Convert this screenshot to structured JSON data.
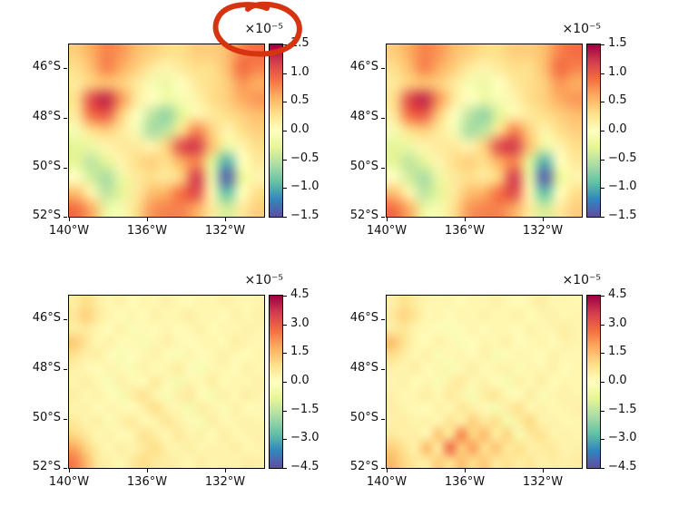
{
  "figure": {
    "background": "#ffffff",
    "text_color": "#111111"
  },
  "annotation": {
    "type": "hand-drawn-circle",
    "color": "#d63310",
    "around": "offset label of top-left colorbar"
  },
  "colormap": {
    "name": "Spectral_r",
    "stops": [
      {
        "t": 0.0,
        "color": "#5e4fa2"
      },
      {
        "t": 0.1,
        "color": "#3288bd"
      },
      {
        "t": 0.2,
        "color": "#66c2a5"
      },
      {
        "t": 0.3,
        "color": "#abdda4"
      },
      {
        "t": 0.4,
        "color": "#e6f598"
      },
      {
        "t": 0.5,
        "color": "#ffffbf"
      },
      {
        "t": 0.6,
        "color": "#fee08b"
      },
      {
        "t": 0.7,
        "color": "#fdae61"
      },
      {
        "t": 0.8,
        "color": "#f46d43"
      },
      {
        "t": 0.9,
        "color": "#d53e4f"
      },
      {
        "t": 1.0,
        "color": "#9e0142"
      }
    ]
  },
  "chart_data": [
    {
      "type": "heatmap",
      "position": "top-left",
      "offset_label": "×10⁻⁵",
      "x_tick_labels": [
        "140°W",
        "136°W",
        "132°W"
      ],
      "y_tick_labels": [
        "46°S",
        "48°S",
        "50°S",
        "52°S"
      ],
      "x_range_deg_west": [
        140.2,
        130.2
      ],
      "y_range_deg_south": [
        45.1,
        52.0
      ],
      "colorbar": {
        "vmin": -1.5,
        "vmax": 1.5,
        "scale": "1e-5",
        "tick_labels": [
          "1.5",
          "1.0",
          "0.5",
          "0.0",
          "−0.5",
          "−1.0",
          "−1.5"
        ]
      },
      "values": [
        [
          0.4,
          0.6,
          0.8,
          0.7,
          0.5,
          0.4,
          0.3,
          0.3,
          0.4,
          0.4,
          0.5,
          0.8,
          0.9
        ],
        [
          0.3,
          0.5,
          0.8,
          0.6,
          0.4,
          0.2,
          0.1,
          0.2,
          0.3,
          0.3,
          0.5,
          0.9,
          0.8
        ],
        [
          0.2,
          0.4,
          0.5,
          0.4,
          0.2,
          -0.1,
          -0.2,
          0.0,
          0.2,
          0.3,
          0.4,
          0.7,
          0.6
        ],
        [
          0.3,
          1.1,
          1.3,
          0.7,
          0.2,
          0.0,
          -0.2,
          -0.1,
          0.1,
          0.3,
          0.4,
          0.6,
          0.7
        ],
        [
          0.2,
          0.9,
          1.0,
          0.4,
          0.0,
          -0.5,
          -0.7,
          -0.3,
          0.1,
          0.2,
          0.3,
          0.4,
          0.5
        ],
        [
          -0.1,
          0.3,
          0.4,
          0.2,
          -0.1,
          -0.6,
          -0.5,
          0.3,
          0.8,
          0.4,
          0.1,
          0.3,
          0.4
        ],
        [
          -0.3,
          -0.2,
          0.1,
          0.2,
          0.2,
          0.1,
          0.4,
          1.1,
          1.2,
          0.5,
          -0.2,
          0.1,
          0.3
        ],
        [
          -0.3,
          -0.5,
          -0.3,
          0.1,
          0.3,
          0.4,
          0.3,
          0.6,
          0.8,
          -0.3,
          -1.0,
          0.0,
          0.2
        ],
        [
          0.0,
          -0.4,
          -0.6,
          -0.2,
          0.2,
          0.3,
          0.2,
          0.4,
          1.2,
          -0.2,
          -1.4,
          -0.3,
          0.1
        ],
        [
          0.5,
          0.1,
          -0.5,
          -0.3,
          0.2,
          0.5,
          0.6,
          0.9,
          1.1,
          0.1,
          -0.9,
          0.0,
          0.3
        ],
        [
          0.9,
          0.6,
          -0.2,
          -0.1,
          0.3,
          0.7,
          0.8,
          0.8,
          0.6,
          0.2,
          -0.4,
          0.2,
          0.4
        ]
      ]
    },
    {
      "type": "heatmap",
      "position": "top-right",
      "offset_label": "×10⁻⁵",
      "x_tick_labels": [
        "140°W",
        "136°W",
        "132°W"
      ],
      "y_tick_labels": [
        "46°S",
        "48°S",
        "50°S",
        "52°S"
      ],
      "x_range_deg_west": [
        140.2,
        130.2
      ],
      "y_range_deg_south": [
        45.1,
        52.0
      ],
      "colorbar": {
        "vmin": -1.5,
        "vmax": 1.5,
        "scale": "1e-5",
        "tick_labels": [
          "1.5",
          "1.0",
          "0.5",
          "0.0",
          "−0.5",
          "−1.0",
          "−1.5"
        ]
      },
      "values": [
        [
          0.4,
          0.6,
          0.8,
          0.7,
          0.5,
          0.4,
          0.3,
          0.3,
          0.4,
          0.4,
          0.5,
          0.8,
          0.9
        ],
        [
          0.3,
          0.5,
          0.8,
          0.6,
          0.4,
          0.2,
          0.1,
          0.2,
          0.3,
          0.3,
          0.5,
          0.9,
          0.8
        ],
        [
          0.2,
          0.4,
          0.5,
          0.4,
          0.2,
          -0.1,
          -0.2,
          0.0,
          0.2,
          0.3,
          0.4,
          0.7,
          0.6
        ],
        [
          0.3,
          1.1,
          1.3,
          0.7,
          0.2,
          0.0,
          -0.2,
          -0.1,
          0.1,
          0.3,
          0.4,
          0.6,
          0.7
        ],
        [
          0.2,
          0.9,
          1.0,
          0.4,
          0.0,
          -0.5,
          -0.7,
          -0.3,
          0.1,
          0.2,
          0.3,
          0.4,
          0.5
        ],
        [
          -0.1,
          0.3,
          0.4,
          0.2,
          -0.1,
          -0.6,
          -0.5,
          0.3,
          0.8,
          0.4,
          0.1,
          0.3,
          0.4
        ],
        [
          -0.3,
          -0.2,
          0.1,
          0.2,
          0.2,
          0.1,
          0.4,
          1.1,
          1.2,
          0.5,
          -0.2,
          0.1,
          0.3
        ],
        [
          -0.3,
          -0.5,
          -0.3,
          0.1,
          0.3,
          0.4,
          0.3,
          0.6,
          0.8,
          -0.3,
          -1.0,
          0.0,
          0.2
        ],
        [
          0.0,
          -0.4,
          -0.6,
          -0.2,
          0.2,
          0.3,
          0.2,
          0.4,
          1.2,
          -0.2,
          -1.4,
          -0.3,
          0.1
        ],
        [
          0.5,
          0.1,
          -0.5,
          -0.3,
          0.2,
          0.5,
          0.6,
          0.9,
          1.1,
          0.1,
          -0.9,
          0.0,
          0.3
        ],
        [
          0.9,
          0.6,
          -0.2,
          -0.1,
          0.3,
          0.7,
          0.8,
          0.8,
          0.6,
          0.2,
          -0.4,
          0.2,
          0.4
        ]
      ]
    },
    {
      "type": "heatmap",
      "position": "bottom-left",
      "offset_label": "×10⁻⁵",
      "x_tick_labels": [
        "140°W",
        "136°W",
        "132°W"
      ],
      "y_tick_labels": [
        "46°S",
        "48°S",
        "50°S",
        "52°S"
      ],
      "x_range_deg_west": [
        140.2,
        130.2
      ],
      "y_range_deg_south": [
        45.1,
        52.0
      ],
      "colorbar": {
        "vmin": -4.5,
        "vmax": 4.5,
        "scale": "1e-5",
        "tick_labels": [
          "4.5",
          "3.0",
          "1.5",
          "0.0",
          "−1.5",
          "−3.0",
          "−4.5"
        ]
      },
      "values": [
        [
          0.5,
          0.9,
          0.5,
          0.2,
          0.4,
          0.1,
          0.3,
          0.2,
          0.4,
          0.2,
          0.1,
          0.3,
          0.2,
          0.4,
          0.3,
          0.2,
          0.3
        ],
        [
          0.7,
          1.2,
          0.6,
          0.3,
          0.1,
          0.3,
          0.1,
          0.4,
          0.2,
          0.3,
          0.5,
          0.2,
          0.3,
          0.1,
          0.4,
          0.2,
          0.4
        ],
        [
          0.5,
          0.6,
          0.3,
          0.1,
          0.4,
          -0.2,
          0.2,
          0.1,
          0.3,
          0.1,
          0.2,
          0.4,
          0.1,
          0.3,
          0.2,
          0.4,
          0.3
        ],
        [
          1.3,
          0.7,
          0.2,
          0.4,
          0.1,
          0.2,
          -0.3,
          0.2,
          0.4,
          0.2,
          0.1,
          0.2,
          0.3,
          0.1,
          0.5,
          0.3,
          0.2
        ],
        [
          0.8,
          0.4,
          0.5,
          0.1,
          -0.3,
          0.1,
          0.2,
          0.4,
          0.1,
          -0.2,
          0.3,
          0.1,
          0.2,
          0.4,
          0.2,
          0.1,
          0.3
        ],
        [
          0.4,
          0.2,
          0.1,
          0.3,
          0.2,
          -0.2,
          0.4,
          0.1,
          0.3,
          0.5,
          0.1,
          -0.3,
          0.2,
          0.3,
          0.1,
          0.4,
          0.2
        ],
        [
          0.3,
          0.5,
          0.2,
          -0.2,
          0.4,
          0.2,
          0.1,
          0.6,
          0.2,
          -0.4,
          0.3,
          0.2,
          0.5,
          0.1,
          0.3,
          0.2,
          0.4
        ],
        [
          0.5,
          0.2,
          0.4,
          0.1,
          -0.3,
          0.5,
          0.8,
          0.3,
          -0.2,
          0.4,
          0.6,
          0.1,
          -0.3,
          0.4,
          0.2,
          0.5,
          0.3
        ],
        [
          0.3,
          0.4,
          0.1,
          0.3,
          0.2,
          0.1,
          0.4,
          0.9,
          0.4,
          0.2,
          -0.4,
          0.5,
          0.3,
          -0.2,
          0.4,
          0.1,
          0.2
        ],
        [
          0.6,
          0.3,
          0.5,
          -0.2,
          0.4,
          0.6,
          0.2,
          0.3,
          0.7,
          0.4,
          0.2,
          -0.3,
          0.5,
          0.2,
          0.3,
          0.4,
          0.3
        ],
        [
          1.0,
          0.6,
          0.2,
          0.4,
          0.1,
          0.3,
          0.8,
          0.5,
          0.2,
          0.6,
          0.3,
          0.4,
          0.1,
          0.5,
          0.2,
          0.3,
          0.4
        ],
        [
          1.9,
          1.1,
          0.5,
          0.2,
          0.5,
          0.3,
          0.6,
          0.9,
          0.4,
          0.3,
          0.5,
          0.2,
          0.4,
          0.3,
          0.5,
          0.2,
          0.3
        ],
        [
          2.5,
          1.6,
          0.6,
          0.4,
          0.2,
          0.6,
          0.9,
          0.6,
          0.5,
          0.4,
          0.2,
          0.5,
          0.3,
          0.4,
          0.3,
          0.5,
          0.4
        ]
      ]
    },
    {
      "type": "heatmap",
      "position": "bottom-right",
      "offset_label": "×10⁻⁵",
      "x_tick_labels": [
        "140°W",
        "136°W",
        "132°W"
      ],
      "y_tick_labels": [
        "46°S",
        "48°S",
        "50°S",
        "52°S"
      ],
      "x_range_deg_west": [
        140.2,
        130.2
      ],
      "y_range_deg_south": [
        45.1,
        52.0
      ],
      "colorbar": {
        "vmin": -4.5,
        "vmax": 4.5,
        "scale": "1e-5",
        "tick_labels": [
          "4.5",
          "3.0",
          "1.5",
          "0.0",
          "−1.5",
          "−3.0",
          "−4.5"
        ]
      },
      "values": [
        [
          0.4,
          0.8,
          0.5,
          0.3,
          0.2,
          0.3,
          0.1,
          0.3,
          0.2,
          0.4,
          0.2,
          0.1,
          0.3,
          0.5,
          0.2,
          0.3,
          0.2
        ],
        [
          0.6,
          1.1,
          0.7,
          0.2,
          0.3,
          0.1,
          0.3,
          0.2,
          0.4,
          0.2,
          0.3,
          0.4,
          0.1,
          0.3,
          0.4,
          0.2,
          0.3
        ],
        [
          0.5,
          0.7,
          0.3,
          0.2,
          0.1,
          -0.2,
          0.1,
          0.3,
          0.1,
          0.3,
          0.2,
          0.1,
          0.4,
          0.2,
          0.3,
          0.5,
          0.3
        ],
        [
          1.5,
          0.8,
          0.3,
          0.1,
          0.4,
          0.2,
          -0.2,
          0.1,
          0.3,
          0.2,
          0.4,
          0.1,
          0.2,
          0.3,
          0.1,
          0.4,
          0.3
        ],
        [
          0.9,
          0.5,
          0.2,
          0.4,
          -0.2,
          0.2,
          0.3,
          0.1,
          0.4,
          -0.3,
          0.1,
          0.3,
          0.2,
          0.1,
          0.4,
          0.2,
          0.2
        ],
        [
          0.4,
          0.3,
          0.5,
          0.1,
          0.3,
          -0.3,
          0.2,
          0.5,
          0.1,
          0.3,
          0.4,
          -0.2,
          0.3,
          0.2,
          0.4,
          0.1,
          0.3
        ],
        [
          0.3,
          0.4,
          0.1,
          0.3,
          -0.2,
          0.4,
          0.6,
          0.2,
          0.4,
          0.1,
          -0.3,
          0.4,
          0.2,
          0.5,
          0.1,
          0.3,
          0.2
        ],
        [
          0.4,
          0.2,
          0.3,
          0.5,
          0.2,
          0.6,
          0.3,
          -0.3,
          0.5,
          0.7,
          0.2,
          0.1,
          0.5,
          -0.2,
          0.3,
          0.4,
          0.3
        ],
        [
          0.5,
          0.3,
          0.2,
          0.1,
          0.4,
          0.2,
          0.7,
          0.4,
          0.2,
          -0.3,
          0.5,
          0.8,
          0.2,
          0.4,
          0.2,
          0.3,
          0.4
        ],
        [
          0.4,
          0.5,
          0.3,
          0.4,
          0.2,
          0.8,
          0.4,
          1.2,
          0.6,
          0.9,
          -0.4,
          0.5,
          1.0,
          0.3,
          0.4,
          0.2,
          0.3
        ],
        [
          0.6,
          0.4,
          0.5,
          0.2,
          1.4,
          0.6,
          2.4,
          1.0,
          1.6,
          0.5,
          1.1,
          -0.3,
          0.6,
          0.8,
          0.3,
          0.4,
          0.3
        ],
        [
          1.2,
          0.8,
          0.4,
          1.6,
          0.5,
          2.8,
          1.2,
          2.0,
          0.8,
          1.4,
          0.6,
          0.9,
          0.4,
          0.5,
          0.6,
          0.3,
          0.4
        ],
        [
          1.6,
          1.0,
          0.6,
          0.5,
          1.2,
          0.8,
          1.5,
          0.9,
          1.3,
          0.6,
          0.8,
          0.5,
          0.7,
          0.4,
          0.5,
          0.4,
          0.5
        ]
      ]
    }
  ]
}
